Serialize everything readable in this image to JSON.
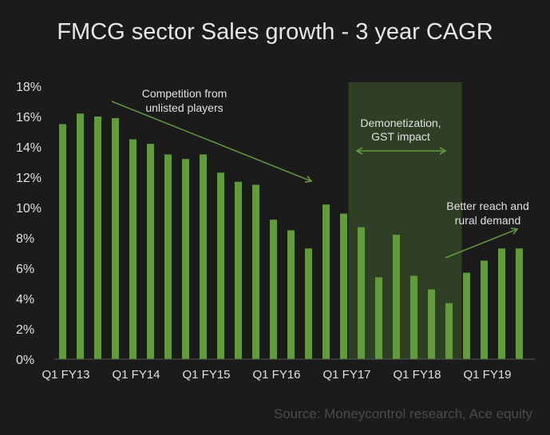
{
  "chart_data": {
    "type": "bar",
    "title": "FMCG sector Sales growth - 3 year CAGR",
    "source": "Source: Moneycontrol research, Ace equity",
    "ylim": [
      0,
      18
    ],
    "y_ticks": [
      "0%",
      "2%",
      "4%",
      "6%",
      "8%",
      "10%",
      "12%",
      "14%",
      "16%",
      "18%"
    ],
    "x_tick_labels": [
      {
        "index": 0,
        "label": "Q1 FY13"
      },
      {
        "index": 4,
        "label": "Q1 FY14"
      },
      {
        "index": 8,
        "label": "Q1 FY15"
      },
      {
        "index": 12,
        "label": "Q1 FY16"
      },
      {
        "index": 16,
        "label": "Q1 FY17"
      },
      {
        "index": 20,
        "label": "Q1 FY18"
      },
      {
        "index": 24,
        "label": "Q1 FY19"
      }
    ],
    "values": [
      15.5,
      16.2,
      16.0,
      15.9,
      14.5,
      14.2,
      13.5,
      13.2,
      13.5,
      12.3,
      11.7,
      11.5,
      9.2,
      8.5,
      7.3,
      10.2,
      9.6,
      8.7,
      5.4,
      8.2,
      5.5,
      4.6,
      3.7,
      5.7,
      6.5,
      7.3,
      7.3
    ],
    "grid": false,
    "colors": {
      "bar": "#629a3d",
      "highlight_band": "#2f3f26",
      "background": "#1b1b1b"
    },
    "highlight_band": {
      "from_index": 17,
      "to_index": 22
    },
    "annotations": [
      {
        "text": [
          "Competition from",
          "unlisted players"
        ]
      },
      {
        "text": [
          "Demonetization,",
          "GST impact"
        ]
      },
      {
        "text": [
          "Better reach and",
          "rural demand"
        ]
      }
    ]
  }
}
